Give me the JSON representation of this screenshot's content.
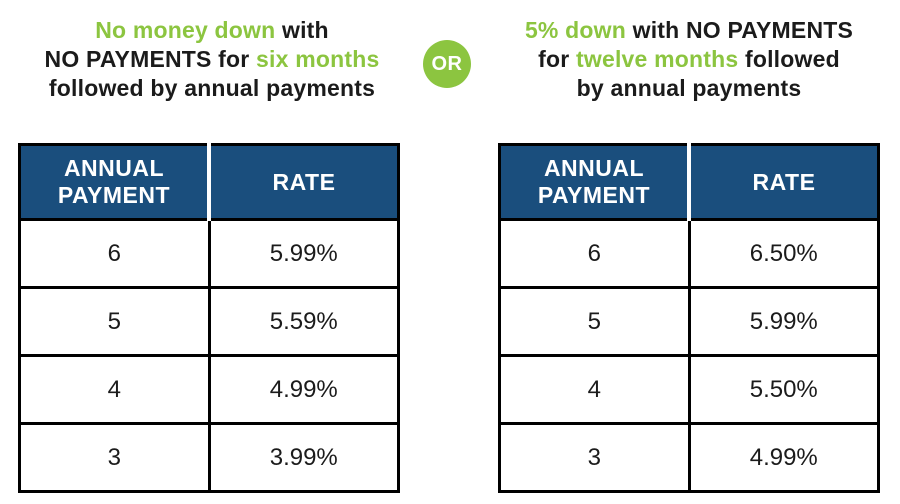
{
  "colors": {
    "green": "#8CC540",
    "blue": "#1A4E7D",
    "dark": "#1b1b1b",
    "white": "#ffffff",
    "border": "#000000"
  },
  "or_badge": {
    "label": "OR"
  },
  "options": [
    {
      "heading": {
        "lines": [
          {
            "segments": [
              {
                "text": "No money down",
                "color": "green"
              },
              {
                "text": " with",
                "color": "dark"
              }
            ]
          },
          {
            "segments": [
              {
                "text": "NO PAYMENTS for ",
                "color": "dark"
              },
              {
                "text": "six months",
                "color": "green"
              }
            ]
          },
          {
            "segments": [
              {
                "text": "followed by annual payments",
                "color": "dark"
              }
            ]
          }
        ]
      },
      "table": {
        "headers": [
          "ANNUAL PAYMENT",
          "RATE"
        ],
        "rows": [
          [
            "6",
            "5.99%"
          ],
          [
            "5",
            "5.59%"
          ],
          [
            "4",
            "4.99%"
          ],
          [
            "3",
            "3.99%"
          ]
        ]
      }
    },
    {
      "heading": {
        "lines": [
          {
            "segments": [
              {
                "text": "5% down",
                "color": "green"
              },
              {
                "text": " with NO PAYMENTS",
                "color": "dark"
              }
            ]
          },
          {
            "segments": [
              {
                "text": "for ",
                "color": "dark"
              },
              {
                "text": "twelve months",
                "color": "green"
              },
              {
                "text": " followed",
                "color": "dark"
              }
            ]
          },
          {
            "segments": [
              {
                "text": "by annual payments",
                "color": "dark"
              }
            ]
          }
        ]
      },
      "table": {
        "headers": [
          "ANNUAL PAYMENT",
          "RATE"
        ],
        "rows": [
          [
            "6",
            "6.50%"
          ],
          [
            "5",
            "5.99%"
          ],
          [
            "4",
            "5.50%"
          ],
          [
            "3",
            "4.99%"
          ]
        ]
      }
    }
  ],
  "chart_data": [
    {
      "type": "table",
      "title": "No money down with NO PAYMENTS for six months followed by annual payments",
      "columns": [
        "ANNUAL PAYMENT",
        "RATE"
      ],
      "rows": [
        [
          "6",
          "5.99%"
        ],
        [
          "5",
          "5.59%"
        ],
        [
          "4",
          "4.99%"
        ],
        [
          "3",
          "3.99%"
        ]
      ]
    },
    {
      "type": "table",
      "title": "5% down with NO PAYMENTS for twelve months followed by annual payments",
      "columns": [
        "ANNUAL PAYMENT",
        "RATE"
      ],
      "rows": [
        [
          "6",
          "6.50%"
        ],
        [
          "5",
          "5.99%"
        ],
        [
          "4",
          "5.50%"
        ],
        [
          "3",
          "4.99%"
        ]
      ]
    }
  ]
}
